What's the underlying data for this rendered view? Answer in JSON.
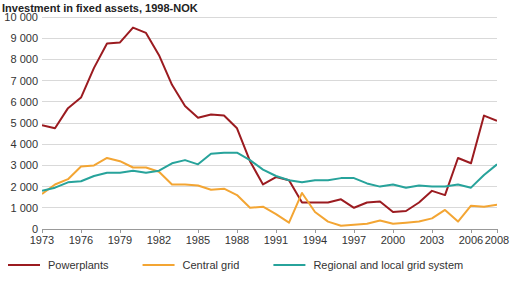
{
  "chart_data": {
    "type": "line",
    "title": "Investment in fixed assets, 1998-NOK",
    "x": [
      1973,
      1974,
      1975,
      1976,
      1977,
      1978,
      1979,
      1980,
      1981,
      1982,
      1983,
      1984,
      1985,
      1986,
      1987,
      1988,
      1989,
      1990,
      1991,
      1992,
      1993,
      1994,
      1995,
      1996,
      1997,
      1998,
      1999,
      2000,
      2001,
      2002,
      2003,
      2004,
      2005,
      2006,
      2007,
      2008
    ],
    "series": [
      {
        "name": "Powerplants",
        "color": "#9b1b20",
        "values": [
          4900,
          4750,
          5700,
          6200,
          7600,
          8750,
          8800,
          9500,
          9250,
          8200,
          6800,
          5800,
          5250,
          5400,
          5350,
          4750,
          3200,
          2100,
          2450,
          2300,
          1250,
          1250,
          1250,
          1400,
          1000,
          1250,
          1300,
          800,
          850,
          1250,
          1800,
          1600,
          3350,
          3100,
          5350,
          5100
        ]
      },
      {
        "name": "Central grid",
        "color": "#f3a533",
        "values": [
          1650,
          2100,
          2350,
          2950,
          3000,
          3350,
          3200,
          2900,
          2900,
          2700,
          2100,
          2100,
          2050,
          1850,
          1900,
          1600,
          1000,
          1050,
          700,
          300,
          1700,
          800,
          350,
          150,
          200,
          250,
          400,
          250,
          300,
          350,
          500,
          900,
          350,
          1100,
          1050,
          1150
        ]
      },
      {
        "name": "Regional and local grid system",
        "color": "#27a39b",
        "values": [
          1800,
          1950,
          2200,
          2250,
          2500,
          2650,
          2650,
          2750,
          2650,
          2750,
          3100,
          3250,
          3050,
          3550,
          3600,
          3600,
          3250,
          2800,
          2500,
          2300,
          2200,
          2300,
          2300,
          2400,
          2400,
          2150,
          2000,
          2100,
          1950,
          2050,
          2000,
          2000,
          2100,
          1950,
          2550,
          3050
        ]
      }
    ],
    "xlim": [
      1973,
      2008
    ],
    "xticks": [
      1973,
      1976,
      1979,
      1982,
      1985,
      1988,
      1991,
      1994,
      1997,
      2000,
      2003,
      2006,
      2008
    ],
    "ylim": [
      0,
      10000
    ],
    "yticks": [
      0,
      {
        "value": 1000,
        "label": "1 000"
      },
      {
        "value": 2000,
        "label": "2 000"
      },
      {
        "value": 3000,
        "label": "3 000"
      },
      {
        "value": 4000,
        "label": "4 000"
      },
      {
        "value": 5000,
        "label": "5 000"
      },
      {
        "value": 6000,
        "label": "6 000"
      },
      {
        "value": 7000,
        "label": "7 000"
      },
      {
        "value": 8000,
        "label": "8 000"
      },
      {
        "value": 9000,
        "label": "9 000"
      },
      {
        "value": 10000,
        "label": "10 000"
      }
    ],
    "grid": true,
    "legend": "bottom"
  }
}
